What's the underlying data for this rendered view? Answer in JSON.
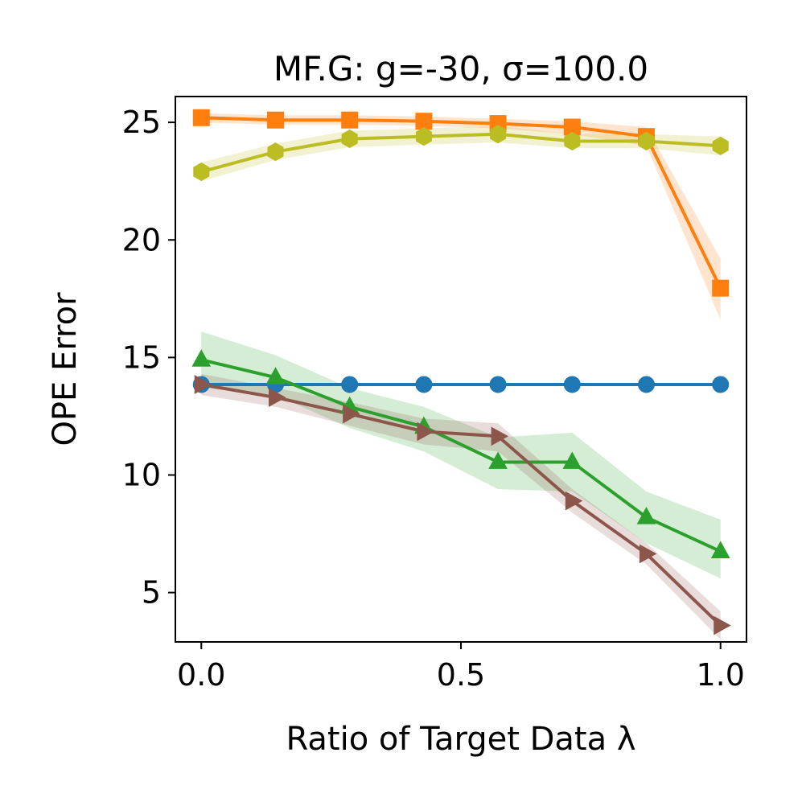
{
  "chart_data": {
    "type": "line",
    "title": "MF.G: g=-30, σ=100.0",
    "xlabel": "Ratio of Target Data λ",
    "ylabel": "OPE Error",
    "xlim": [
      -0.05,
      1.05
    ],
    "ylim": [
      2.9,
      26.1
    ],
    "xticks": [
      0.0,
      0.5,
      1.0
    ],
    "xtick_labels": [
      "0.0",
      "0.5",
      "1.0"
    ],
    "yticks": [
      5,
      10,
      15,
      20,
      25
    ],
    "ytick_labels": [
      "5",
      "10",
      "15",
      "20",
      "25"
    ],
    "grid": false,
    "x": [
      0.0,
      0.1429,
      0.2857,
      0.4286,
      0.5714,
      0.7143,
      0.8571,
      1.0
    ],
    "series": [
      {
        "name": "blue-circle",
        "color": "#1f77b4",
        "marker": "circle",
        "values": [
          13.85,
          13.85,
          13.85,
          13.85,
          13.85,
          13.85,
          13.85,
          13.85
        ],
        "lower": [
          13.85,
          13.85,
          13.85,
          13.85,
          13.85,
          13.85,
          13.85,
          13.85
        ],
        "upper": [
          13.85,
          13.85,
          13.85,
          13.85,
          13.85,
          13.85,
          13.85,
          13.85
        ]
      },
      {
        "name": "orange-square",
        "color": "#ff7f0e",
        "marker": "square",
        "values": [
          25.2,
          25.1,
          25.1,
          25.05,
          24.95,
          24.8,
          24.4,
          17.95
        ],
        "lower": [
          25.0,
          24.9,
          24.9,
          24.85,
          24.75,
          24.5,
          24.0,
          16.6
        ],
        "upper": [
          25.4,
          25.3,
          25.3,
          25.25,
          25.15,
          25.05,
          24.8,
          19.2
        ]
      },
      {
        "name": "green-triangle",
        "color": "#2ca02c",
        "marker": "triangle-up",
        "values": [
          14.9,
          14.15,
          12.9,
          12.05,
          10.55,
          10.55,
          8.2,
          6.75
        ],
        "lower": [
          13.7,
          13.4,
          12.0,
          11.0,
          9.4,
          9.3,
          7.1,
          5.6
        ],
        "upper": [
          16.1,
          15.1,
          13.7,
          12.9,
          11.6,
          11.8,
          9.3,
          8.1
        ]
      },
      {
        "name": "brown-triangle-right",
        "color": "#8c564b",
        "marker": "triangle-right",
        "values": [
          13.85,
          13.3,
          12.6,
          11.85,
          11.65,
          8.9,
          6.65,
          3.6
        ],
        "lower": [
          13.4,
          12.9,
          12.1,
          11.3,
          11.0,
          8.4,
          6.2,
          3.0
        ],
        "upper": [
          14.3,
          13.7,
          13.1,
          12.4,
          12.2,
          9.4,
          7.1,
          4.2
        ]
      },
      {
        "name": "olive-hexagon",
        "color": "#bcbd22",
        "marker": "hexagon",
        "values": [
          22.9,
          23.75,
          24.3,
          24.4,
          24.5,
          24.2,
          24.2,
          24.0
        ],
        "lower": [
          22.5,
          23.4,
          23.95,
          24.05,
          24.15,
          23.9,
          23.9,
          23.6
        ],
        "upper": [
          23.3,
          24.1,
          24.65,
          24.75,
          24.85,
          24.5,
          24.5,
          24.4
        ]
      }
    ]
  }
}
